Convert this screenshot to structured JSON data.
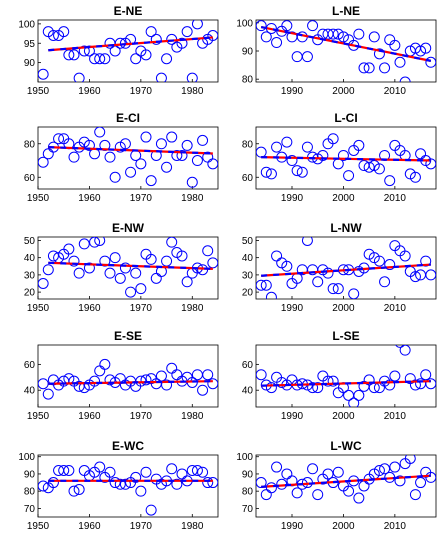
{
  "colors": {
    "points": "#0000ff",
    "trend_solid": "#ff0000",
    "trend_dashed": "#0000ff"
  },
  "chart_data": [
    {
      "type": "scatter",
      "title": "E-NE",
      "xlim": [
        1950,
        1985
      ],
      "ylim": [
        85,
        101
      ],
      "xticks": [
        1950,
        1960,
        1970,
        1980
      ],
      "yticks": [
        90,
        95,
        100
      ],
      "x": [
        1951,
        1952,
        1953,
        1954,
        1955,
        1956,
        1957,
        1958,
        1959,
        1960,
        1961,
        1962,
        1963,
        1964,
        1965,
        1966,
        1967,
        1968,
        1969,
        1970,
        1971,
        1972,
        1973,
        1974,
        1975,
        1976,
        1977,
        1978,
        1979,
        1980,
        1981,
        1982,
        1983,
        1984
      ],
      "y": [
        87,
        98,
        97,
        97,
        98,
        92,
        92,
        86,
        93,
        93,
        91,
        91,
        91,
        95,
        93,
        95,
        95,
        96,
        91,
        93,
        92,
        98,
        96,
        86,
        91,
        96,
        94,
        95,
        98,
        86,
        100,
        95,
        96,
        97
      ],
      "trend": [
        [
          1952,
          93.2
        ],
        [
          1984,
          96.5
        ]
      ]
    },
    {
      "type": "scatter",
      "title": "L-NE",
      "xlim": [
        1983,
        2018
      ],
      "ylim": [
        79,
        101
      ],
      "xticks": [
        1990,
        2000,
        2010
      ],
      "yticks": [
        80,
        90,
        100
      ],
      "x": [
        1984,
        1985,
        1986,
        1987,
        1988,
        1989,
        1990,
        1991,
        1992,
        1993,
        1994,
        1995,
        1996,
        1997,
        1998,
        1999,
        2000,
        2001,
        2002,
        2003,
        2004,
        2005,
        2006,
        2007,
        2008,
        2009,
        2010,
        2011,
        2012,
        2013,
        2014,
        2015,
        2016,
        2017
      ],
      "y": [
        99,
        95,
        98,
        93,
        97,
        99,
        95,
        88,
        95,
        88,
        99,
        94,
        96,
        96,
        96,
        96,
        95,
        94,
        92,
        96,
        84,
        84,
        95,
        89,
        84,
        94,
        92,
        86,
        79,
        90,
        91,
        90,
        91,
        86
      ],
      "trend": [
        [
          1984,
          98.5
        ],
        [
          2017,
          86.5
        ]
      ]
    },
    {
      "type": "scatter",
      "title": "E-CI",
      "xlim": [
        1950,
        1985
      ],
      "ylim": [
        53,
        90
      ],
      "xticks": [
        1950,
        1960,
        1970,
        1980
      ],
      "yticks": [
        60,
        80
      ],
      "x": [
        1951,
        1952,
        1953,
        1954,
        1955,
        1956,
        1957,
        1958,
        1959,
        1960,
        1961,
        1962,
        1963,
        1964,
        1965,
        1966,
        1967,
        1968,
        1969,
        1970,
        1971,
        1972,
        1973,
        1974,
        1975,
        1976,
        1977,
        1978,
        1979,
        1980,
        1981,
        1982,
        1983,
        1984
      ],
      "y": [
        69,
        74,
        78,
        83,
        83,
        80,
        72,
        78,
        81,
        79,
        74,
        87,
        79,
        72,
        60,
        78,
        80,
        63,
        73,
        68,
        84,
        58,
        73,
        80,
        66,
        84,
        73,
        73,
        79,
        57,
        70,
        82,
        72,
        68
      ],
      "trend": [
        [
          1952,
          78.0
        ],
        [
          1984,
          74.2
        ]
      ]
    },
    {
      "type": "scatter",
      "title": "L-CI",
      "xlim": [
        1983,
        2018
      ],
      "ylim": [
        53,
        90
      ],
      "xticks": [
        1990,
        2000,
        2010
      ],
      "yticks": [
        60,
        80
      ],
      "x": [
        1984,
        1985,
        1986,
        1987,
        1988,
        1989,
        1990,
        1991,
        1992,
        1993,
        1994,
        1995,
        1996,
        1997,
        1998,
        1999,
        2000,
        2001,
        2002,
        2003,
        2004,
        2005,
        2006,
        2007,
        2008,
        2009,
        2010,
        2011,
        2012,
        2013,
        2014,
        2015,
        2016,
        2017
      ],
      "y": [
        75,
        63,
        62,
        78,
        72,
        81,
        70,
        64,
        63,
        78,
        72,
        71,
        73,
        80,
        83,
        68,
        73,
        61,
        76,
        79,
        67,
        66,
        67,
        65,
        73,
        58,
        79,
        76,
        73,
        62,
        60,
        74,
        70,
        68
      ],
      "trend": [
        [
          1984,
          72.0
        ],
        [
          2017,
          70.0
        ]
      ]
    },
    {
      "type": "scatter",
      "title": "E-NW",
      "xlim": [
        1950,
        1985
      ],
      "ylim": [
        16,
        52
      ],
      "xticks": [
        1950,
        1960,
        1970,
        1980
      ],
      "yticks": [
        20,
        30,
        40,
        50
      ],
      "x": [
        1951,
        1952,
        1953,
        1954,
        1955,
        1956,
        1957,
        1958,
        1959,
        1960,
        1961,
        1962,
        1963,
        1964,
        1965,
        1966,
        1967,
        1968,
        1969,
        1970,
        1971,
        1972,
        1973,
        1974,
        1975,
        1976,
        1977,
        1978,
        1979,
        1980,
        1981,
        1982,
        1983,
        1984
      ],
      "y": [
        25,
        33,
        41,
        40,
        42,
        45,
        38,
        31,
        48,
        34,
        49,
        50,
        38,
        31,
        40,
        28,
        34,
        20,
        31,
        22,
        42,
        39,
        28,
        32,
        38,
        49,
        43,
        41,
        26,
        31,
        34,
        33,
        44,
        37
      ],
      "trend": [
        [
          1952,
          37.0
        ],
        [
          1984,
          33.5
        ]
      ]
    },
    {
      "type": "scatter",
      "title": "L-NW",
      "xlim": [
        1983,
        2018
      ],
      "ylim": [
        16,
        52
      ],
      "xticks": [
        1990,
        2000,
        2010
      ],
      "yticks": [
        20,
        30,
        40,
        50
      ],
      "x": [
        1984,
        1985,
        1986,
        1987,
        1988,
        1989,
        1990,
        1991,
        1992,
        1993,
        1994,
        1995,
        1996,
        1997,
        1998,
        1999,
        2000,
        2001,
        2002,
        2003,
        2004,
        2005,
        2006,
        2007,
        2008,
        2009,
        2010,
        2011,
        2012,
        2013,
        2014,
        2015,
        2016,
        2017
      ],
      "y": [
        24,
        24,
        17,
        41,
        37,
        35,
        25,
        28,
        33,
        50,
        33,
        26,
        33,
        31,
        22,
        22,
        33,
        33,
        19,
        32,
        34,
        42,
        40,
        38,
        26,
        36,
        47,
        44,
        41,
        32,
        29,
        30,
        38,
        30
      ],
      "trend": [
        [
          1984,
          29.5
        ],
        [
          2017,
          36.0
        ]
      ]
    },
    {
      "type": "scatter",
      "title": "E-SE",
      "xlim": [
        1950,
        1985
      ],
      "ylim": [
        27,
        75
      ],
      "xticks": [
        1950,
        1960,
        1970,
        1980
      ],
      "yticks": [
        40,
        60
      ],
      "x": [
        1951,
        1952,
        1953,
        1954,
        1955,
        1956,
        1957,
        1958,
        1959,
        1960,
        1961,
        1962,
        1963,
        1964,
        1965,
        1966,
        1967,
        1968,
        1969,
        1970,
        1971,
        1972,
        1973,
        1974,
        1975,
        1976,
        1977,
        1978,
        1979,
        1980,
        1981,
        1982,
        1983,
        1984
      ],
      "y": [
        45,
        37,
        48,
        44,
        47,
        49,
        47,
        43,
        42,
        44,
        47,
        55,
        60,
        48,
        46,
        49,
        44,
        47,
        43,
        47,
        48,
        49,
        45,
        51,
        44,
        57,
        52,
        47,
        50,
        46,
        52,
        40,
        52,
        45
      ],
      "trend": [
        [
          1952,
          45.0
        ],
        [
          1984,
          47.0
        ]
      ]
    },
    {
      "type": "scatter",
      "title": "L-SE",
      "xlim": [
        1983,
        2018
      ],
      "ylim": [
        27,
        75
      ],
      "xticks": [
        1990,
        2000,
        2010
      ],
      "yticks": [
        40,
        60
      ],
      "x": [
        1984,
        1985,
        1986,
        1987,
        1988,
        1989,
        1990,
        1991,
        1992,
        1993,
        1994,
        1995,
        1996,
        1997,
        1998,
        1999,
        2000,
        2001,
        2002,
        2003,
        2004,
        2005,
        2006,
        2007,
        2008,
        2009,
        2010,
        2011,
        2012,
        2013,
        2014,
        2015,
        2016,
        2017
      ],
      "y": [
        52,
        44,
        42,
        50,
        46,
        44,
        48,
        44,
        45,
        44,
        42,
        42,
        51,
        47,
        47,
        38,
        42,
        36,
        30,
        36,
        43,
        48,
        42,
        42,
        47,
        44,
        51,
        77,
        71,
        49,
        44,
        45,
        52,
        45
      ],
      "trend": [
        [
          1984,
          43.5
        ],
        [
          2017,
          47.0
        ]
      ]
    },
    {
      "type": "scatter",
      "title": "E-WC",
      "xlim": [
        1950,
        1985
      ],
      "ylim": [
        65,
        101
      ],
      "xticks": [
        1950,
        1960,
        1970,
        1980
      ],
      "yticks": [
        70,
        80,
        90,
        100
      ],
      "x": [
        1951,
        1952,
        1953,
        1954,
        1955,
        1956,
        1957,
        1958,
        1959,
        1960,
        1961,
        1962,
        1963,
        1964,
        1965,
        1966,
        1967,
        1968,
        1969,
        1970,
        1971,
        1972,
        1973,
        1974,
        1975,
        1976,
        1977,
        1978,
        1979,
        1980,
        1981,
        1982,
        1983,
        1984
      ],
      "y": [
        83,
        82,
        85,
        92,
        92,
        92,
        80,
        81,
        92,
        89,
        91,
        94,
        88,
        91,
        85,
        84,
        84,
        85,
        88,
        80,
        91,
        69,
        87,
        84,
        86,
        93,
        84,
        90,
        86,
        92,
        92,
        91,
        85,
        85
      ],
      "trend": [
        [
          1952,
          86.0
        ],
        [
          1984,
          86.0
        ]
      ]
    },
    {
      "type": "scatter",
      "title": "L-WC",
      "xlim": [
        1983,
        2018
      ],
      "ylim": [
        65,
        101
      ],
      "xticks": [
        1990,
        2000,
        2010
      ],
      "yticks": [
        70,
        80,
        90,
        100
      ],
      "x": [
        1984,
        1985,
        1986,
        1987,
        1988,
        1989,
        1990,
        1991,
        1992,
        1993,
        1994,
        1995,
        1996,
        1997,
        1998,
        1999,
        2000,
        2001,
        2002,
        2003,
        2004,
        2005,
        2006,
        2007,
        2008,
        2009,
        2010,
        2011,
        2012,
        2013,
        2014,
        2015,
        2016,
        2017
      ],
      "y": [
        85,
        78,
        82,
        94,
        84,
        90,
        86,
        79,
        84,
        85,
        93,
        78,
        87,
        90,
        85,
        91,
        83,
        80,
        86,
        76,
        83,
        87,
        90,
        92,
        93,
        88,
        94,
        86,
        96,
        99,
        78,
        85,
        91,
        88
      ],
      "trend": [
        [
          1984,
          82.5
        ],
        [
          2017,
          89.0
        ]
      ]
    }
  ]
}
